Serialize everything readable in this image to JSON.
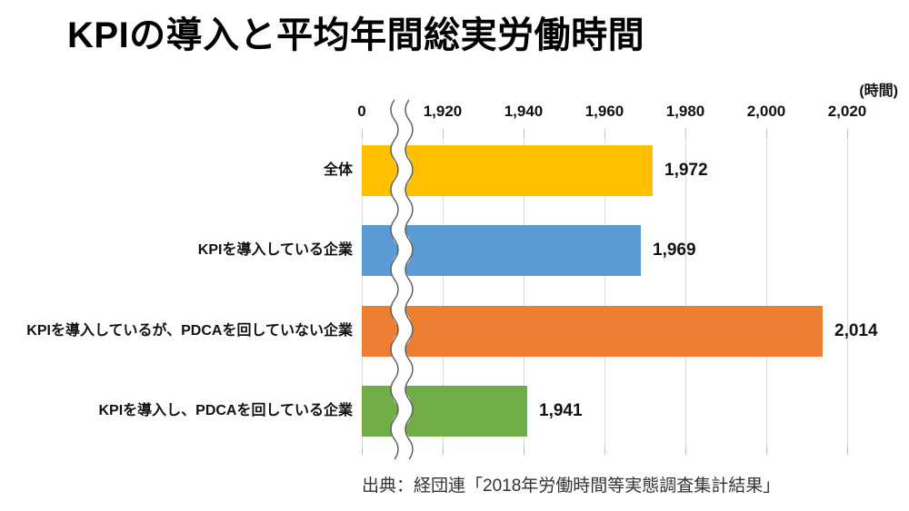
{
  "slide": {
    "title": "KPIの導入と平均年間総実労働時間",
    "unit_label": "(時間)",
    "source": "出典：経団連「2018年労働時間等実態調査集計結果」"
  },
  "chart_data": {
    "type": "bar",
    "orientation": "horizontal",
    "title": "KPIの導入と平均年間総実労働時間",
    "xlabel": "時間",
    "categories": [
      "全体",
      "KPIを導入している企業",
      "KPIを導入しているが、PDCAを回していない企業",
      "KPIを導入し、PDCAを回している企業"
    ],
    "values": [
      1972,
      1969,
      2014,
      1941
    ],
    "value_labels": [
      "1,972",
      "1,969",
      "2,014",
      "1,941"
    ],
    "bar_colors": [
      "#FFC000",
      "#5B9BD5",
      "#ED7D31",
      "#70AD47"
    ],
    "x_ticks": [
      {
        "label": "0",
        "value": 0
      },
      {
        "label": "1,920",
        "value": 1920
      },
      {
        "label": "1,940",
        "value": 1940
      },
      {
        "label": "1,960",
        "value": 1960
      },
      {
        "label": "1,980",
        "value": 1980
      },
      {
        "label": "2,000",
        "value": 2000
      },
      {
        "label": "2,020",
        "value": 2020
      }
    ],
    "axis_break_after_zero": true,
    "scale_start": 1920,
    "scale_interval": 20,
    "xlim": [
      1920,
      2034
    ],
    "grid": true,
    "legend": false,
    "axis_position": "top",
    "gridline_color": "#d9d9d9",
    "tick_color": "#bfbfbf"
  }
}
